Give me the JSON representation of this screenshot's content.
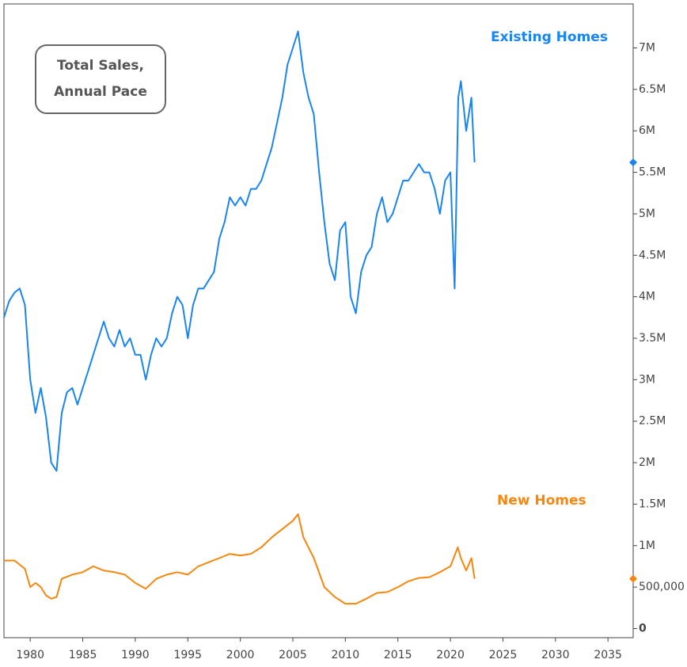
{
  "chart_data": {
    "type": "line",
    "annotation": [
      "Total Sales,",
      "Annual Pace"
    ],
    "xlim": [
      1977.5,
      2037.4
    ],
    "xticks": [
      1980,
      1985,
      1990,
      1995,
      2000,
      2005,
      2010,
      2015,
      2020,
      2025,
      2030,
      2035
    ],
    "ylim": [
      -110000,
      7530000
    ],
    "yticks": [
      0,
      {
        "value": 500000,
        "label": "500,000"
      },
      {
        "value": 1000000,
        "label": "1M"
      },
      {
        "value": 1500000,
        "label": "1.5M"
      },
      {
        "value": 2000000,
        "label": "2M"
      },
      {
        "value": 2500000,
        "label": "2.5M"
      },
      {
        "value": 3000000,
        "label": "3M"
      },
      {
        "value": 3500000,
        "label": "3.5M"
      },
      {
        "value": 4000000,
        "label": "4M"
      },
      {
        "value": 4500000,
        "label": "4.5M"
      },
      {
        "value": 5000000,
        "label": "5M"
      },
      {
        "value": 5500000,
        "label": "5.5M"
      },
      {
        "value": 6000000,
        "label": "6M"
      },
      {
        "value": 6500000,
        "label": "6.5M"
      },
      {
        "value": 7000000,
        "label": "7M"
      }
    ],
    "series": [
      {
        "name": "Existing Homes",
        "color": "#1a85f0",
        "x": [
          1977.5,
          1978,
          1978.5,
          1979,
          1979.5,
          1980,
          1980.5,
          1981,
          1981.5,
          1982,
          1982.5,
          1983,
          1983.5,
          1984,
          1984.5,
          1985,
          1985.5,
          1986,
          1986.5,
          1987,
          1987.5,
          1988,
          1988.5,
          1989,
          1989.5,
          1990,
          1990.5,
          1991,
          1991.5,
          1992,
          1992.5,
          1993,
          1993.5,
          1994,
          1994.5,
          1995,
          1995.5,
          1996,
          1996.5,
          1997,
          1997.5,
          1998,
          1998.5,
          1999,
          1999.5,
          2000,
          2000.5,
          2001,
          2001.5,
          2002,
          2002.5,
          2003,
          2003.5,
          2004,
          2004.5,
          2005,
          2005.5,
          2006,
          2006.5,
          2007,
          2007.5,
          2008,
          2008.5,
          2009,
          2009.5,
          2010,
          2010.5,
          2011,
          2011.5,
          2012,
          2012.5,
          2013,
          2013.5,
          2014,
          2014.5,
          2015,
          2015.5,
          2016,
          2016.5,
          2017,
          2017.5,
          2018,
          2018.5,
          2019,
          2019.5,
          2020,
          2020.4,
          2020.75,
          2021,
          2021.5,
          2022,
          2022.3
        ],
        "values": [
          3750000,
          3950000,
          4050000,
          4100000,
          3900000,
          3000000,
          2600000,
          2900000,
          2550000,
          2000000,
          1900000,
          2600000,
          2850000,
          2900000,
          2700000,
          2900000,
          3100000,
          3300000,
          3500000,
          3700000,
          3500000,
          3400000,
          3600000,
          3400000,
          3500000,
          3300000,
          3300000,
          3000000,
          3300000,
          3500000,
          3400000,
          3500000,
          3800000,
          4000000,
          3900000,
          3500000,
          3900000,
          4100000,
          4100000,
          4200000,
          4300000,
          4700000,
          4900000,
          5200000,
          5100000,
          5200000,
          5100000,
          5300000,
          5300000,
          5400000,
          5600000,
          5800000,
          6100000,
          6400000,
          6800000,
          7000000,
          7200000,
          6700000,
          6400000,
          6200000,
          5500000,
          4900000,
          4400000,
          4200000,
          4800000,
          4900000,
          4000000,
          3800000,
          4300000,
          4500000,
          4600000,
          5000000,
          5200000,
          4900000,
          5000000,
          5200000,
          5400000,
          5400000,
          5500000,
          5600000,
          5500000,
          5500000,
          5300000,
          5000000,
          5400000,
          5500000,
          4100000,
          6400000,
          6600000,
          6000000,
          6400000,
          5620000
        ]
      },
      {
        "name": "New Homes",
        "color": "#f5870f",
        "x": [
          1977.5,
          1978.5,
          1979.5,
          1980,
          1980.5,
          1981,
          1981.5,
          1982,
          1982.5,
          1983,
          1984,
          1985,
          1986,
          1987,
          1988,
          1989,
          1990,
          1991,
          1992,
          1993,
          1994,
          1995,
          1996,
          1997,
          1998,
          1999,
          2000,
          2001,
          2002,
          2003,
          2004,
          2005,
          2005.5,
          2006,
          2007,
          2008,
          2009,
          2010,
          2011,
          2012,
          2013,
          2014,
          2015,
          2016,
          2017,
          2018,
          2019,
          2020,
          2020.7,
          2021,
          2021.5,
          2022,
          2022.3
        ],
        "values": [
          820000,
          820000,
          720000,
          500000,
          550000,
          500000,
          400000,
          360000,
          380000,
          600000,
          650000,
          680000,
          750000,
          700000,
          680000,
          650000,
          550000,
          480000,
          600000,
          650000,
          680000,
          650000,
          750000,
          800000,
          850000,
          900000,
          880000,
          900000,
          980000,
          1100000,
          1200000,
          1300000,
          1380000,
          1100000,
          850000,
          500000,
          380000,
          300000,
          300000,
          360000,
          430000,
          440000,
          500000,
          570000,
          610000,
          620000,
          680000,
          750000,
          980000,
          850000,
          700000,
          850000,
          600000
        ]
      }
    ]
  }
}
